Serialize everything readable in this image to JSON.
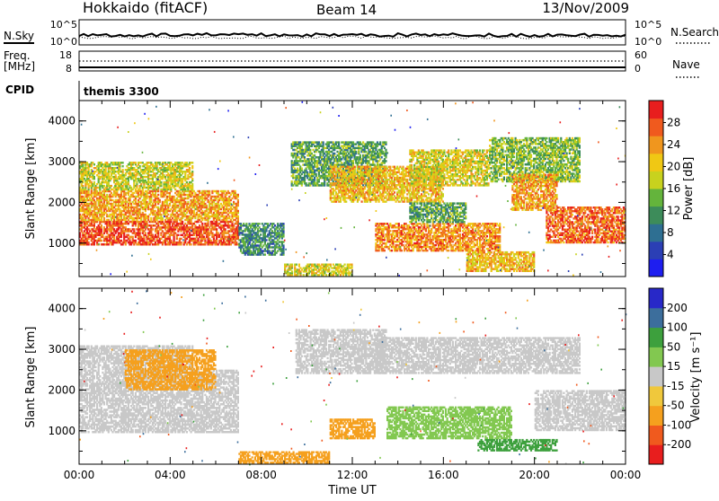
{
  "header": {
    "title": "Hokkaido (fitACF)",
    "beam": "Beam 14",
    "date": "13/Nov/2009"
  },
  "noise_panel": {
    "left_label": "N.Sky",
    "right_label": "N.Search",
    "left_ticks": [
      "10^5",
      "10^0"
    ],
    "right_ticks": [
      "10^5",
      "10^0"
    ]
  },
  "freq_panel": {
    "left_label_1": "Freq.",
    "left_label_2": "[MHz]",
    "right_label": "Nave",
    "left_ticks": [
      "18",
      "8"
    ],
    "right_ticks": [
      "60",
      "0"
    ]
  },
  "cpid_panel": {
    "label": "CPID",
    "program": "themis 3300"
  },
  "chart_data": [
    {
      "type": "heatmap",
      "name": "power",
      "ylabel": "Slant Range [km]",
      "yticks": [
        "4000",
        "3000",
        "2000",
        "1000"
      ],
      "ylim": [
        180,
        4500
      ],
      "xlim_hours": [
        0,
        24
      ],
      "colorbar_label": "Power [dB]",
      "colorbar_ticks": [
        "28",
        "24",
        "20",
        "16",
        "12",
        "8",
        "4"
      ],
      "colorbar_range": [
        0,
        30
      ],
      "bands": [
        {
          "t0": 0.0,
          "t1": 7.0,
          "r0": 950,
          "r1": 1550,
          "v": 26
        },
        {
          "t0": 0.0,
          "t1": 7.0,
          "r0": 1550,
          "r1": 2300,
          "v": 22
        },
        {
          "t0": 0.0,
          "t1": 5.0,
          "r0": 2300,
          "r1": 3000,
          "v": 17
        },
        {
          "t0": 7.0,
          "t1": 9.0,
          "r0": 700,
          "r1": 1500,
          "v": 10
        },
        {
          "t0": 9.3,
          "t1": 13.5,
          "r0": 2400,
          "r1": 3500,
          "v": 12
        },
        {
          "t0": 11.0,
          "t1": 16.0,
          "r0": 2000,
          "r1": 2900,
          "v": 20
        },
        {
          "t0": 14.5,
          "t1": 18.0,
          "r0": 2400,
          "r1": 3300,
          "v": 18
        },
        {
          "t0": 18.0,
          "t1": 22.0,
          "r0": 2500,
          "r1": 3600,
          "v": 14
        },
        {
          "t0": 13.0,
          "t1": 18.5,
          "r0": 800,
          "r1": 1500,
          "v": 23
        },
        {
          "t0": 14.5,
          "t1": 17.0,
          "r0": 1500,
          "r1": 2000,
          "v": 12
        },
        {
          "t0": 20.5,
          "t1": 24.0,
          "r0": 1000,
          "r1": 1900,
          "v": 25
        },
        {
          "t0": 19.0,
          "t1": 21.0,
          "r0": 1800,
          "r1": 2700,
          "v": 22
        },
        {
          "t0": 9.0,
          "t1": 12.0,
          "r0": 200,
          "r1": 500,
          "v": 18
        },
        {
          "t0": 17.0,
          "t1": 20.0,
          "r0": 300,
          "r1": 800,
          "v": 20
        }
      ]
    },
    {
      "type": "heatmap",
      "name": "velocity",
      "ylabel": "Slant Range [km]",
      "yticks": [
        "4000",
        "3000",
        "2000",
        "1000"
      ],
      "ylim": [
        180,
        4500
      ],
      "xlim_hours": [
        0,
        24
      ],
      "xticks": [
        "00:00",
        "04:00",
        "08:00",
        "12:00",
        "16:00",
        "20:00",
        "00:00"
      ],
      "xlabel": "Time UT",
      "colorbar_label": "Velocity [m s⁻¹]",
      "colorbar_ticks": [
        "200",
        "100",
        "50",
        "15",
        "-15",
        "-50",
        "-100",
        "-200"
      ],
      "colorbar_range": [
        -250,
        250
      ],
      "bands": [
        {
          "t0": 0.0,
          "t1": 7.0,
          "r0": 950,
          "r1": 2500,
          "v": 0
        },
        {
          "t0": 0.0,
          "t1": 5.0,
          "r0": 2500,
          "r1": 3100,
          "v": 0
        },
        {
          "t0": 2.0,
          "t1": 6.0,
          "r0": 2000,
          "r1": 3000,
          "v": -40
        },
        {
          "t0": 9.5,
          "t1": 13.5,
          "r0": 2400,
          "r1": 3500,
          "v": 0
        },
        {
          "t0": 13.0,
          "t1": 22.0,
          "r0": 2400,
          "r1": 3300,
          "v": 0
        },
        {
          "t0": 13.5,
          "t1": 19.0,
          "r0": 800,
          "r1": 1600,
          "v": 40
        },
        {
          "t0": 17.5,
          "t1": 21.0,
          "r0": 500,
          "r1": 800,
          "v": 80
        },
        {
          "t0": 20.0,
          "t1": 24.0,
          "r0": 1000,
          "r1": 2000,
          "v": 0
        },
        {
          "t0": 7.0,
          "t1": 11.0,
          "r0": 200,
          "r1": 500,
          "v": -60
        },
        {
          "t0": 11.0,
          "t1": 13.0,
          "r0": 800,
          "r1": 1300,
          "v": -70
        }
      ]
    }
  ]
}
